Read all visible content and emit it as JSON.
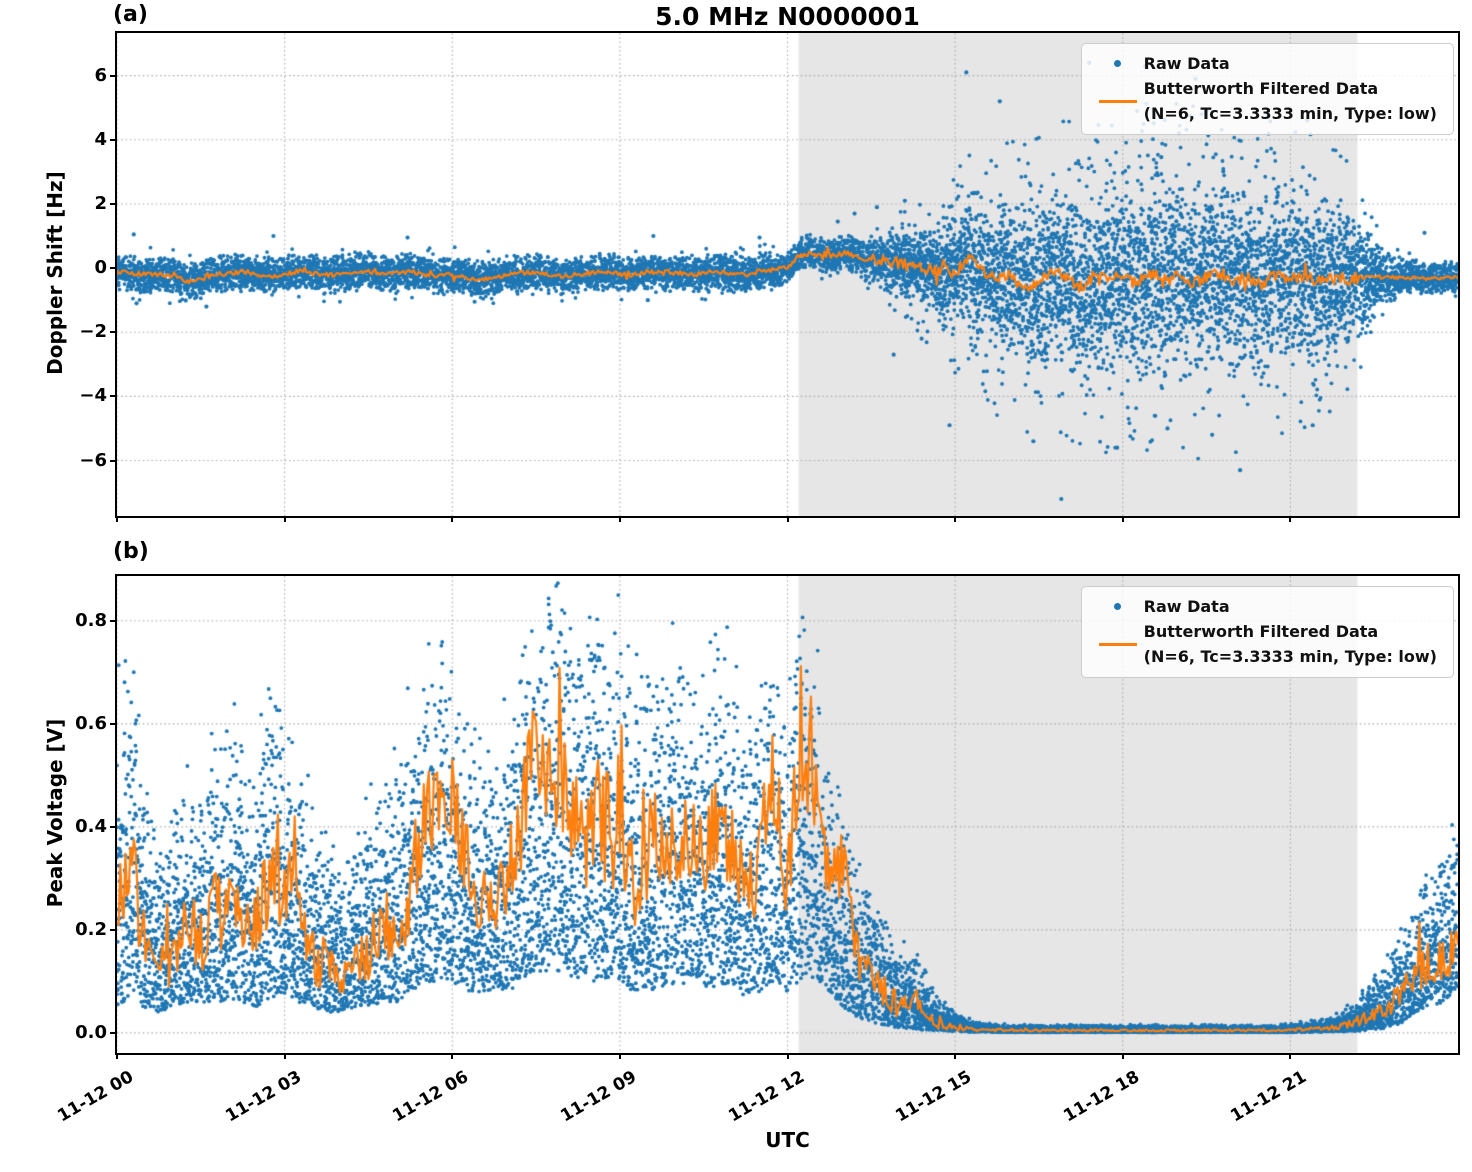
{
  "legend": {
    "raw_label": "Raw Data",
    "filtered_line1": "Butterworth Filtered Data",
    "filtered_line2": "(N=6, Tc=3.3333 min, Type: low)"
  },
  "colors": {
    "raw": "#1f77b4",
    "filtered": "#ff7f0e",
    "shade": "#e6e6e6",
    "grid": "#ababab",
    "spine": "#000000"
  },
  "chart_data": [
    {
      "panel": "a",
      "type": "scatter+line",
      "tag": "(a)",
      "title": "5.0 MHz N0000001",
      "ylabel": "Doppler Shift [Hz]",
      "xlabel": "",
      "x_axis": "UTC time on 11-12, hours 0-24",
      "xlim_hours": [
        0,
        24
      ],
      "xticks": {
        "hours": [
          0,
          3,
          6,
          9,
          12,
          15,
          18,
          21
        ],
        "labels": [
          "11-12 00",
          "11-12 03",
          "11-12 06",
          "11-12 09",
          "11-12 12",
          "11-12 15",
          "11-12 18",
          "11-12 21"
        ]
      },
      "ylim": [
        -7.73,
        7.33
      ],
      "yticks": {
        "values": [
          6,
          4,
          2,
          0,
          -2,
          -4,
          -6
        ],
        "labels": [
          "6",
          "4",
          "2",
          "0",
          "−2",
          "−4",
          "−6"
        ]
      },
      "grid": "dotted",
      "shaded_span_hours": [
        12.2,
        22.2
      ],
      "legend_position": "upper right",
      "series": {
        "raw_scatter_envelope": {
          "description": "dense scatter band: center +/- half_spread in Hz, sampled every 0.25 h",
          "t_start_hours": 0,
          "t_step_hours": 0.25,
          "center": [
            -0.1,
            -0.15,
            -0.2,
            -0.18,
            -0.25,
            -0.42,
            -0.35,
            -0.2,
            -0.15,
            -0.12,
            -0.2,
            -0.25,
            -0.2,
            -0.1,
            -0.15,
            -0.22,
            -0.2,
            -0.12,
            -0.1,
            -0.18,
            -0.15,
            -0.1,
            -0.2,
            -0.25,
            -0.2,
            -0.3,
            -0.38,
            -0.3,
            -0.2,
            -0.15,
            -0.12,
            -0.2,
            -0.25,
            -0.2,
            -0.15,
            -0.1,
            -0.18,
            -0.2,
            -0.15,
            -0.1,
            -0.15,
            -0.2,
            -0.18,
            -0.12,
            -0.15,
            -0.2,
            -0.1,
            -0.05,
            0.0,
            0.5,
            0.45,
            0.4,
            0.45,
            0.35,
            0.3,
            0.2,
            0.15,
            0.05,
            -0.05,
            -0.1,
            -0.15,
            0.3,
            -0.1,
            -0.4,
            -0.2,
            -0.7,
            -0.35,
            -0.1,
            -0.3,
            -0.6,
            -0.25,
            -0.45,
            -0.2,
            -0.5,
            -0.15,
            -0.35,
            -0.25,
            -0.5,
            -0.3,
            -0.15,
            -0.4,
            -0.3,
            -0.5,
            -0.2,
            -0.35,
            -0.3,
            -0.4,
            -0.3,
            -0.35,
            -0.3,
            -0.25,
            -0.3,
            -0.28,
            -0.3,
            -0.32,
            -0.3,
            -0.3
          ],
          "half_spread": [
            0.6,
            0.6,
            0.6,
            0.6,
            0.6,
            0.6,
            0.6,
            0.6,
            0.6,
            0.6,
            0.6,
            0.6,
            0.6,
            0.6,
            0.6,
            0.6,
            0.6,
            0.6,
            0.6,
            0.6,
            0.6,
            0.6,
            0.6,
            0.6,
            0.6,
            0.6,
            0.6,
            0.6,
            0.6,
            0.6,
            0.6,
            0.6,
            0.6,
            0.6,
            0.6,
            0.6,
            0.6,
            0.6,
            0.6,
            0.6,
            0.6,
            0.6,
            0.6,
            0.6,
            0.6,
            0.6,
            0.6,
            0.6,
            0.55,
            0.55,
            0.55,
            0.55,
            0.6,
            0.65,
            0.8,
            0.9,
            1.1,
            1.3,
            1.6,
            1.9,
            2.2,
            2.5,
            2.7,
            2.9,
            3.1,
            3.2,
            3.3,
            3.4,
            3.5,
            3.6,
            3.6,
            3.7,
            3.7,
            3.8,
            3.8,
            3.8,
            3.9,
            3.85,
            3.8,
            3.75,
            3.7,
            3.65,
            3.6,
            3.5,
            3.4,
            3.3,
            3.1,
            2.9,
            2.6,
            2.0,
            1.2,
            0.8,
            0.6,
            0.55,
            0.55,
            0.55,
            0.55
          ],
          "outliers_t_value": [
            [
              0.3,
              1.05
            ],
            [
              0.35,
              -1.1
            ],
            [
              1.6,
              -1.2
            ],
            [
              2.8,
              1.0
            ],
            [
              5.2,
              0.95
            ],
            [
              6.4,
              -1.05
            ],
            [
              9.5,
              -1.0
            ],
            [
              9.6,
              1.0
            ],
            [
              11.5,
              0.95
            ],
            [
              12.9,
              1.45
            ],
            [
              13.2,
              1.7
            ],
            [
              13.6,
              1.9
            ],
            [
              13.9,
              -2.7
            ],
            [
              14.1,
              2.1
            ],
            [
              14.4,
              -2.2
            ],
            [
              14.9,
              -4.9
            ],
            [
              15.2,
              6.1
            ],
            [
              15.8,
              5.2
            ],
            [
              16.4,
              -5.4
            ],
            [
              16.9,
              -7.2
            ],
            [
              17.4,
              6.4
            ],
            [
              17.9,
              -5.6
            ],
            [
              18.4,
              6.3
            ],
            [
              18.8,
              -5.0
            ],
            [
              19.3,
              5.9
            ],
            [
              19.6,
              -5.2
            ],
            [
              20.1,
              -6.3
            ],
            [
              20.6,
              4.8
            ],
            [
              21.3,
              4.6
            ],
            [
              21.4,
              -4.9
            ],
            [
              23.4,
              1.1
            ]
          ]
        },
        "filtered_line": {
          "t_start_hours": 0,
          "t_step_hours": 0.25,
          "values": [
            -0.1,
            -0.15,
            -0.2,
            -0.18,
            -0.25,
            -0.42,
            -0.35,
            -0.2,
            -0.15,
            -0.12,
            -0.2,
            -0.25,
            -0.2,
            -0.1,
            -0.15,
            -0.22,
            -0.2,
            -0.12,
            -0.1,
            -0.18,
            -0.15,
            -0.1,
            -0.2,
            -0.25,
            -0.2,
            -0.3,
            -0.38,
            -0.3,
            -0.2,
            -0.15,
            -0.12,
            -0.2,
            -0.25,
            -0.2,
            -0.15,
            -0.1,
            -0.18,
            -0.2,
            -0.15,
            -0.1,
            -0.15,
            -0.2,
            -0.18,
            -0.12,
            -0.15,
            -0.2,
            -0.1,
            -0.05,
            0.0,
            0.5,
            0.45,
            0.4,
            0.45,
            0.35,
            0.3,
            0.2,
            0.15,
            0.05,
            -0.05,
            -0.1,
            -0.15,
            0.3,
            -0.1,
            -0.4,
            -0.2,
            -0.7,
            -0.35,
            -0.1,
            -0.3,
            -0.6,
            -0.25,
            -0.45,
            -0.2,
            -0.5,
            -0.15,
            -0.35,
            -0.25,
            -0.5,
            -0.3,
            -0.15,
            -0.4,
            -0.3,
            -0.5,
            -0.2,
            -0.35,
            -0.3,
            -0.4,
            -0.3,
            -0.35,
            -0.3,
            -0.25,
            -0.3,
            -0.28,
            -0.3,
            -0.32,
            -0.3,
            -0.3
          ]
        }
      }
    },
    {
      "panel": "b",
      "type": "scatter+line",
      "tag": "(b)",
      "title": "",
      "ylabel": "Peak Voltage [V]",
      "xlabel": "UTC",
      "xlim_hours": [
        0,
        24
      ],
      "xticks": {
        "hours": [
          0,
          3,
          6,
          9,
          12,
          15,
          18,
          21
        ],
        "labels": [
          "11-12 00",
          "11-12 03",
          "11-12 06",
          "11-12 09",
          "11-12 12",
          "11-12 15",
          "11-12 18",
          "11-12 21"
        ]
      },
      "ylim": [
        -0.039,
        0.887
      ],
      "yticks": {
        "values": [
          0.8,
          0.6,
          0.4,
          0.2,
          0.0
        ],
        "labels": [
          "0.8",
          "0.6",
          "0.4",
          "0.2",
          "0.0"
        ]
      },
      "grid": "dotted",
      "shaded_span_hours": [
        12.2,
        22.2
      ],
      "legend_position": "upper right",
      "series": {
        "raw_scatter_envelope": {
          "description": "scatter band between band_low and band_high in V, sampled every 0.25 h, density concentrated low",
          "t_start_hours": 0,
          "t_step_hours": 0.25,
          "band_low": [
            0.05,
            0.06,
            0.05,
            0.04,
            0.05,
            0.06,
            0.05,
            0.06,
            0.06,
            0.06,
            0.05,
            0.07,
            0.07,
            0.06,
            0.05,
            0.04,
            0.04,
            0.05,
            0.05,
            0.06,
            0.06,
            0.08,
            0.1,
            0.1,
            0.1,
            0.08,
            0.08,
            0.07,
            0.08,
            0.1,
            0.12,
            0.12,
            0.12,
            0.1,
            0.1,
            0.1,
            0.1,
            0.08,
            0.08,
            0.09,
            0.09,
            0.1,
            0.09,
            0.09,
            0.09,
            0.07,
            0.08,
            0.1,
            0.08,
            0.1,
            0.1,
            0.08,
            0.05,
            0.03,
            0.02,
            0.015,
            0.01,
            0.008,
            0.005,
            0.004,
            0.003,
            0.002,
            0.002,
            0.001,
            0.001,
            0.001,
            0.001,
            0.001,
            0.001,
            0.001,
            0.001,
            0.001,
            0.001,
            0.001,
            0.001,
            0.001,
            0.001,
            0.001,
            0.001,
            0.001,
            0.001,
            0.001,
            0.001,
            0.001,
            0.001,
            0.001,
            0.002,
            0.002,
            0.003,
            0.004,
            0.006,
            0.01,
            0.02,
            0.04,
            0.05,
            0.06,
            0.09
          ],
          "band_high": [
            0.62,
            0.77,
            0.45,
            0.35,
            0.4,
            0.5,
            0.45,
            0.55,
            0.6,
            0.55,
            0.5,
            0.74,
            0.55,
            0.5,
            0.42,
            0.35,
            0.32,
            0.38,
            0.42,
            0.48,
            0.5,
            0.62,
            0.68,
            0.7,
            0.72,
            0.6,
            0.55,
            0.5,
            0.62,
            0.72,
            0.8,
            0.84,
            0.85,
            0.82,
            0.8,
            0.78,
            0.75,
            0.65,
            0.72,
            0.74,
            0.7,
            0.74,
            0.7,
            0.72,
            0.7,
            0.6,
            0.7,
            0.72,
            0.6,
            0.85,
            0.72,
            0.55,
            0.45,
            0.32,
            0.28,
            0.22,
            0.15,
            0.17,
            0.1,
            0.06,
            0.04,
            0.025,
            0.02,
            0.018,
            0.015,
            0.015,
            0.015,
            0.015,
            0.015,
            0.015,
            0.015,
            0.015,
            0.015,
            0.015,
            0.015,
            0.015,
            0.015,
            0.015,
            0.015,
            0.015,
            0.015,
            0.015,
            0.015,
            0.015,
            0.018,
            0.02,
            0.025,
            0.03,
            0.045,
            0.07,
            0.11,
            0.15,
            0.19,
            0.26,
            0.32,
            0.36,
            0.42
          ]
        },
        "filtered_line": {
          "t_start_hours": 0,
          "t_step_hours": 0.25,
          "values": [
            0.27,
            0.33,
            0.18,
            0.12,
            0.14,
            0.22,
            0.18,
            0.24,
            0.22,
            0.24,
            0.21,
            0.3,
            0.25,
            0.26,
            0.15,
            0.13,
            0.11,
            0.13,
            0.16,
            0.19,
            0.15,
            0.28,
            0.43,
            0.41,
            0.44,
            0.33,
            0.26,
            0.24,
            0.3,
            0.42,
            0.55,
            0.5,
            0.45,
            0.42,
            0.38,
            0.4,
            0.37,
            0.29,
            0.35,
            0.38,
            0.36,
            0.4,
            0.37,
            0.39,
            0.36,
            0.28,
            0.34,
            0.5,
            0.28,
            0.58,
            0.45,
            0.3,
            0.33,
            0.15,
            0.1,
            0.08,
            0.05,
            0.07,
            0.03,
            0.015,
            0.01,
            0.007,
            0.006,
            0.005,
            0.005,
            0.005,
            0.005,
            0.005,
            0.005,
            0.005,
            0.005,
            0.005,
            0.005,
            0.005,
            0.005,
            0.005,
            0.005,
            0.005,
            0.005,
            0.005,
            0.005,
            0.005,
            0.005,
            0.005,
            0.006,
            0.007,
            0.008,
            0.01,
            0.015,
            0.025,
            0.04,
            0.055,
            0.08,
            0.11,
            0.14,
            0.13,
            0.18
          ]
        }
      }
    }
  ]
}
